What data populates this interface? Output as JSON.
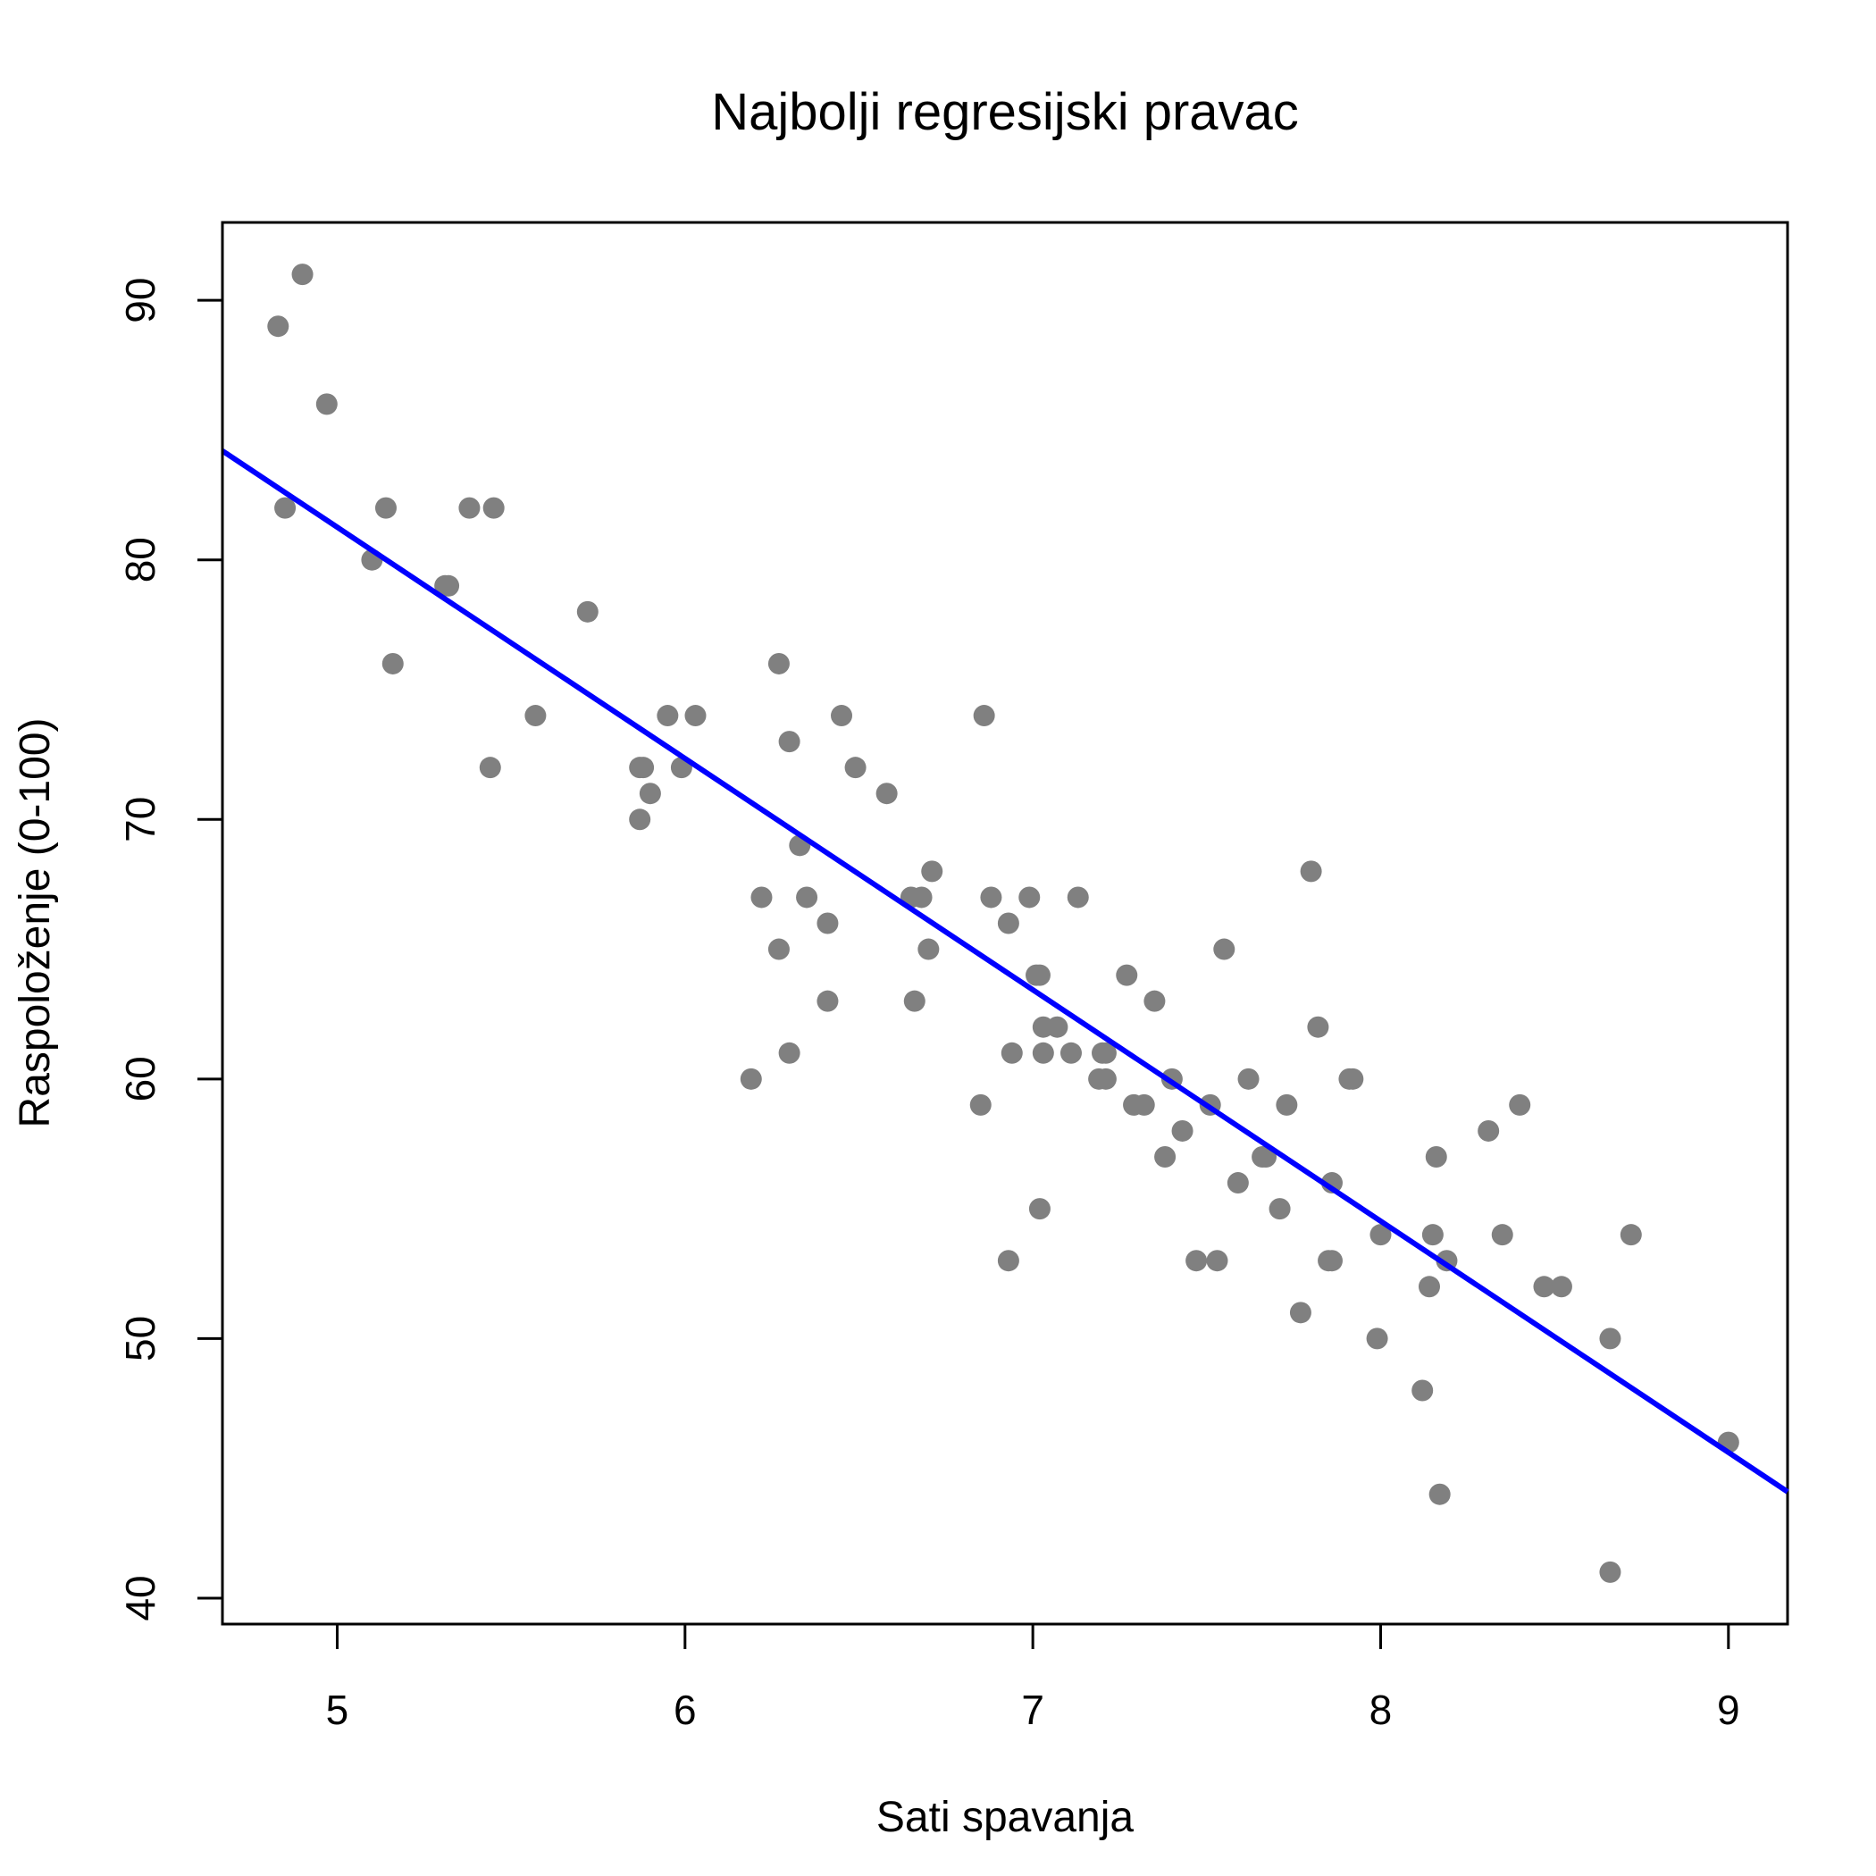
{
  "chart_data": {
    "type": "scatter",
    "title": "Najbolji regresijski pravac",
    "xlabel": "Sati spavanja",
    "ylabel": "Raspoloženje (0-100)",
    "xlim": [
      4.67,
      9.17
    ],
    "ylim": [
      39.0,
      93.0
    ],
    "xticks": [
      5,
      6,
      7,
      8,
      9
    ],
    "yticks": [
      40,
      50,
      60,
      70,
      80,
      90
    ],
    "grid": false,
    "colors": {
      "points": "#808080",
      "line": "#0000ff",
      "axes": "#000000"
    },
    "series": [
      {
        "points": [
          [
            4.83,
            89
          ],
          [
            4.9,
            91
          ],
          [
            4.97,
            86
          ],
          [
            4.85,
            82
          ],
          [
            5.14,
            82
          ],
          [
            5.38,
            82
          ],
          [
            5.45,
            82
          ],
          [
            5.1,
            80
          ],
          [
            5.31,
            79
          ],
          [
            5.32,
            79
          ],
          [
            5.72,
            78
          ],
          [
            5.16,
            76
          ],
          [
            5.57,
            74
          ],
          [
            5.44,
            72
          ],
          [
            5.87,
            72
          ],
          [
            5.88,
            72
          ],
          [
            5.95,
            74
          ],
          [
            6.03,
            74
          ],
          [
            5.99,
            72
          ],
          [
            5.9,
            71
          ],
          [
            5.87,
            70
          ],
          [
            6.27,
            76
          ],
          [
            6.3,
            73
          ],
          [
            6.45,
            74
          ],
          [
            6.49,
            72
          ],
          [
            6.58,
            71
          ],
          [
            6.86,
            74
          ],
          [
            6.33,
            69
          ],
          [
            6.22,
            67
          ],
          [
            6.35,
            67
          ],
          [
            6.27,
            65
          ],
          [
            6.41,
            66
          ],
          [
            6.41,
            63
          ],
          [
            6.3,
            61
          ],
          [
            6.19,
            60
          ],
          [
            6.65,
            67
          ],
          [
            6.68,
            67
          ],
          [
            6.71,
            68
          ],
          [
            6.7,
            65
          ],
          [
            6.66,
            63
          ],
          [
            6.88,
            67
          ],
          [
            6.99,
            67
          ],
          [
            6.93,
            66
          ],
          [
            7.01,
            64
          ],
          [
            7.02,
            64
          ],
          [
            7.03,
            62
          ],
          [
            7.07,
            62
          ],
          [
            7.03,
            61
          ],
          [
            7.11,
            61
          ],
          [
            7.13,
            67
          ],
          [
            6.94,
            61
          ],
          [
            6.85,
            59
          ],
          [
            7.02,
            55
          ],
          [
            6.93,
            53
          ],
          [
            7.2,
            61
          ],
          [
            7.21,
            61
          ],
          [
            7.19,
            60
          ],
          [
            7.21,
            60
          ],
          [
            7.27,
            64
          ],
          [
            7.35,
            63
          ],
          [
            7.29,
            59
          ],
          [
            7.32,
            59
          ],
          [
            7.4,
            60
          ],
          [
            7.43,
            58
          ],
          [
            7.38,
            57
          ],
          [
            7.51,
            59
          ],
          [
            7.55,
            65
          ],
          [
            7.62,
            60
          ],
          [
            7.73,
            59
          ],
          [
            7.59,
            56
          ],
          [
            7.66,
            57
          ],
          [
            7.67,
            57
          ],
          [
            7.71,
            55
          ],
          [
            7.47,
            53
          ],
          [
            7.53,
            53
          ],
          [
            7.8,
            68
          ],
          [
            7.82,
            62
          ],
          [
            7.86,
            56
          ],
          [
            7.85,
            53
          ],
          [
            7.86,
            53
          ],
          [
            7.77,
            51
          ],
          [
            7.91,
            60
          ],
          [
            7.92,
            60
          ],
          [
            8.0,
            54
          ],
          [
            7.99,
            50
          ],
          [
            8.16,
            57
          ],
          [
            8.15,
            54
          ],
          [
            8.19,
            53
          ],
          [
            8.14,
            52
          ],
          [
            8.12,
            48
          ],
          [
            8.17,
            44
          ],
          [
            8.31,
            58
          ],
          [
            8.4,
            59
          ],
          [
            8.35,
            54
          ],
          [
            8.47,
            52
          ],
          [
            8.52,
            52
          ],
          [
            8.66,
            50
          ],
          [
            8.72,
            54
          ],
          [
            8.66,
            41
          ],
          [
            9.0,
            46
          ]
        ]
      }
    ],
    "regression_line": {
      "x": [
        4.67,
        9.17
      ],
      "y": [
        84.2,
        44.1
      ]
    }
  }
}
